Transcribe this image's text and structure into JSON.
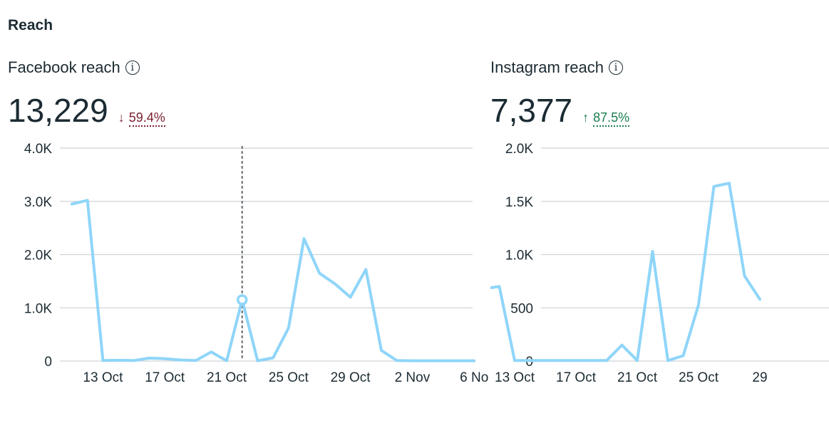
{
  "section": {
    "title": "Reach"
  },
  "facebook": {
    "title": "Facebook reach",
    "value": "13,229",
    "change_arrow": "↓",
    "change": "59.4%",
    "change_color": "#7a1f2b",
    "info_icon": "info-icon"
  },
  "instagram": {
    "title": "Instagram reach",
    "value": "7,377",
    "change_arrow": "↑",
    "change": "87.5%",
    "change_color": "#1a7d4e",
    "info_icon": "info-icon"
  },
  "chart_data": [
    {
      "type": "line",
      "title": "Facebook reach",
      "line_color": "#8fd5f9",
      "grid": true,
      "ylim": [
        0,
        4000
      ],
      "y_ticks": [
        0,
        1000,
        2000,
        3000,
        4000
      ],
      "y_tick_labels": [
        "0",
        "1.0K",
        "2.0K",
        "3.0K",
        "4.0K"
      ],
      "x_tick_labels": [
        "13 Oct",
        "17 Oct",
        "21 Oct",
        "25 Oct",
        "29 Oct",
        "2 Nov",
        "6 No"
      ],
      "x_tick_indices": [
        2,
        6,
        10,
        14,
        18,
        22,
        26
      ],
      "x": [
        "11 Oct",
        "12 Oct",
        "13 Oct",
        "14 Oct",
        "15 Oct",
        "16 Oct",
        "17 Oct",
        "18 Oct",
        "19 Oct",
        "20 Oct",
        "21 Oct",
        "22 Oct",
        "23 Oct",
        "24 Oct",
        "25 Oct",
        "26 Oct",
        "27 Oct",
        "28 Oct",
        "29 Oct",
        "30 Oct",
        "31 Oct",
        "1 Nov",
        "2 Nov",
        "3 Nov",
        "4 Nov",
        "5 Nov",
        "6 Nov"
      ],
      "values": [
        2950,
        3020,
        10,
        15,
        10,
        55,
        45,
        20,
        10,
        170,
        5,
        1150,
        5,
        60,
        620,
        2300,
        1650,
        1450,
        1200,
        1720,
        200,
        10,
        5,
        5,
        5,
        5,
        5
      ],
      "highlight_index": 11
    },
    {
      "type": "line",
      "title": "Instagram reach",
      "line_color": "#8fd5f9",
      "grid": true,
      "ylim": [
        0,
        2000
      ],
      "y_ticks": [
        0,
        500,
        1000,
        1500,
        2000
      ],
      "y_tick_labels": [
        "0",
        "500",
        "1.0K",
        "1.5K",
        "2.0K"
      ],
      "x_tick_labels": [
        "13 Oct",
        "17 Oct",
        "21 Oct",
        "25 Oct",
        "29"
      ],
      "x_tick_indices": [
        2,
        6,
        10,
        14,
        18
      ],
      "x": [
        "11 Oct",
        "12 Oct",
        "13 Oct",
        "14 Oct",
        "15 Oct",
        "16 Oct",
        "17 Oct",
        "18 Oct",
        "19 Oct",
        "20 Oct",
        "21 Oct",
        "22 Oct",
        "23 Oct",
        "24 Oct",
        "25 Oct",
        "26 Oct",
        "27 Oct",
        "28 Oct",
        "29 Oct"
      ],
      "values": [
        680,
        700,
        5,
        5,
        5,
        5,
        5,
        5,
        5,
        150,
        5,
        1030,
        5,
        50,
        530,
        1640,
        1670,
        800,
        580
      ]
    }
  ]
}
